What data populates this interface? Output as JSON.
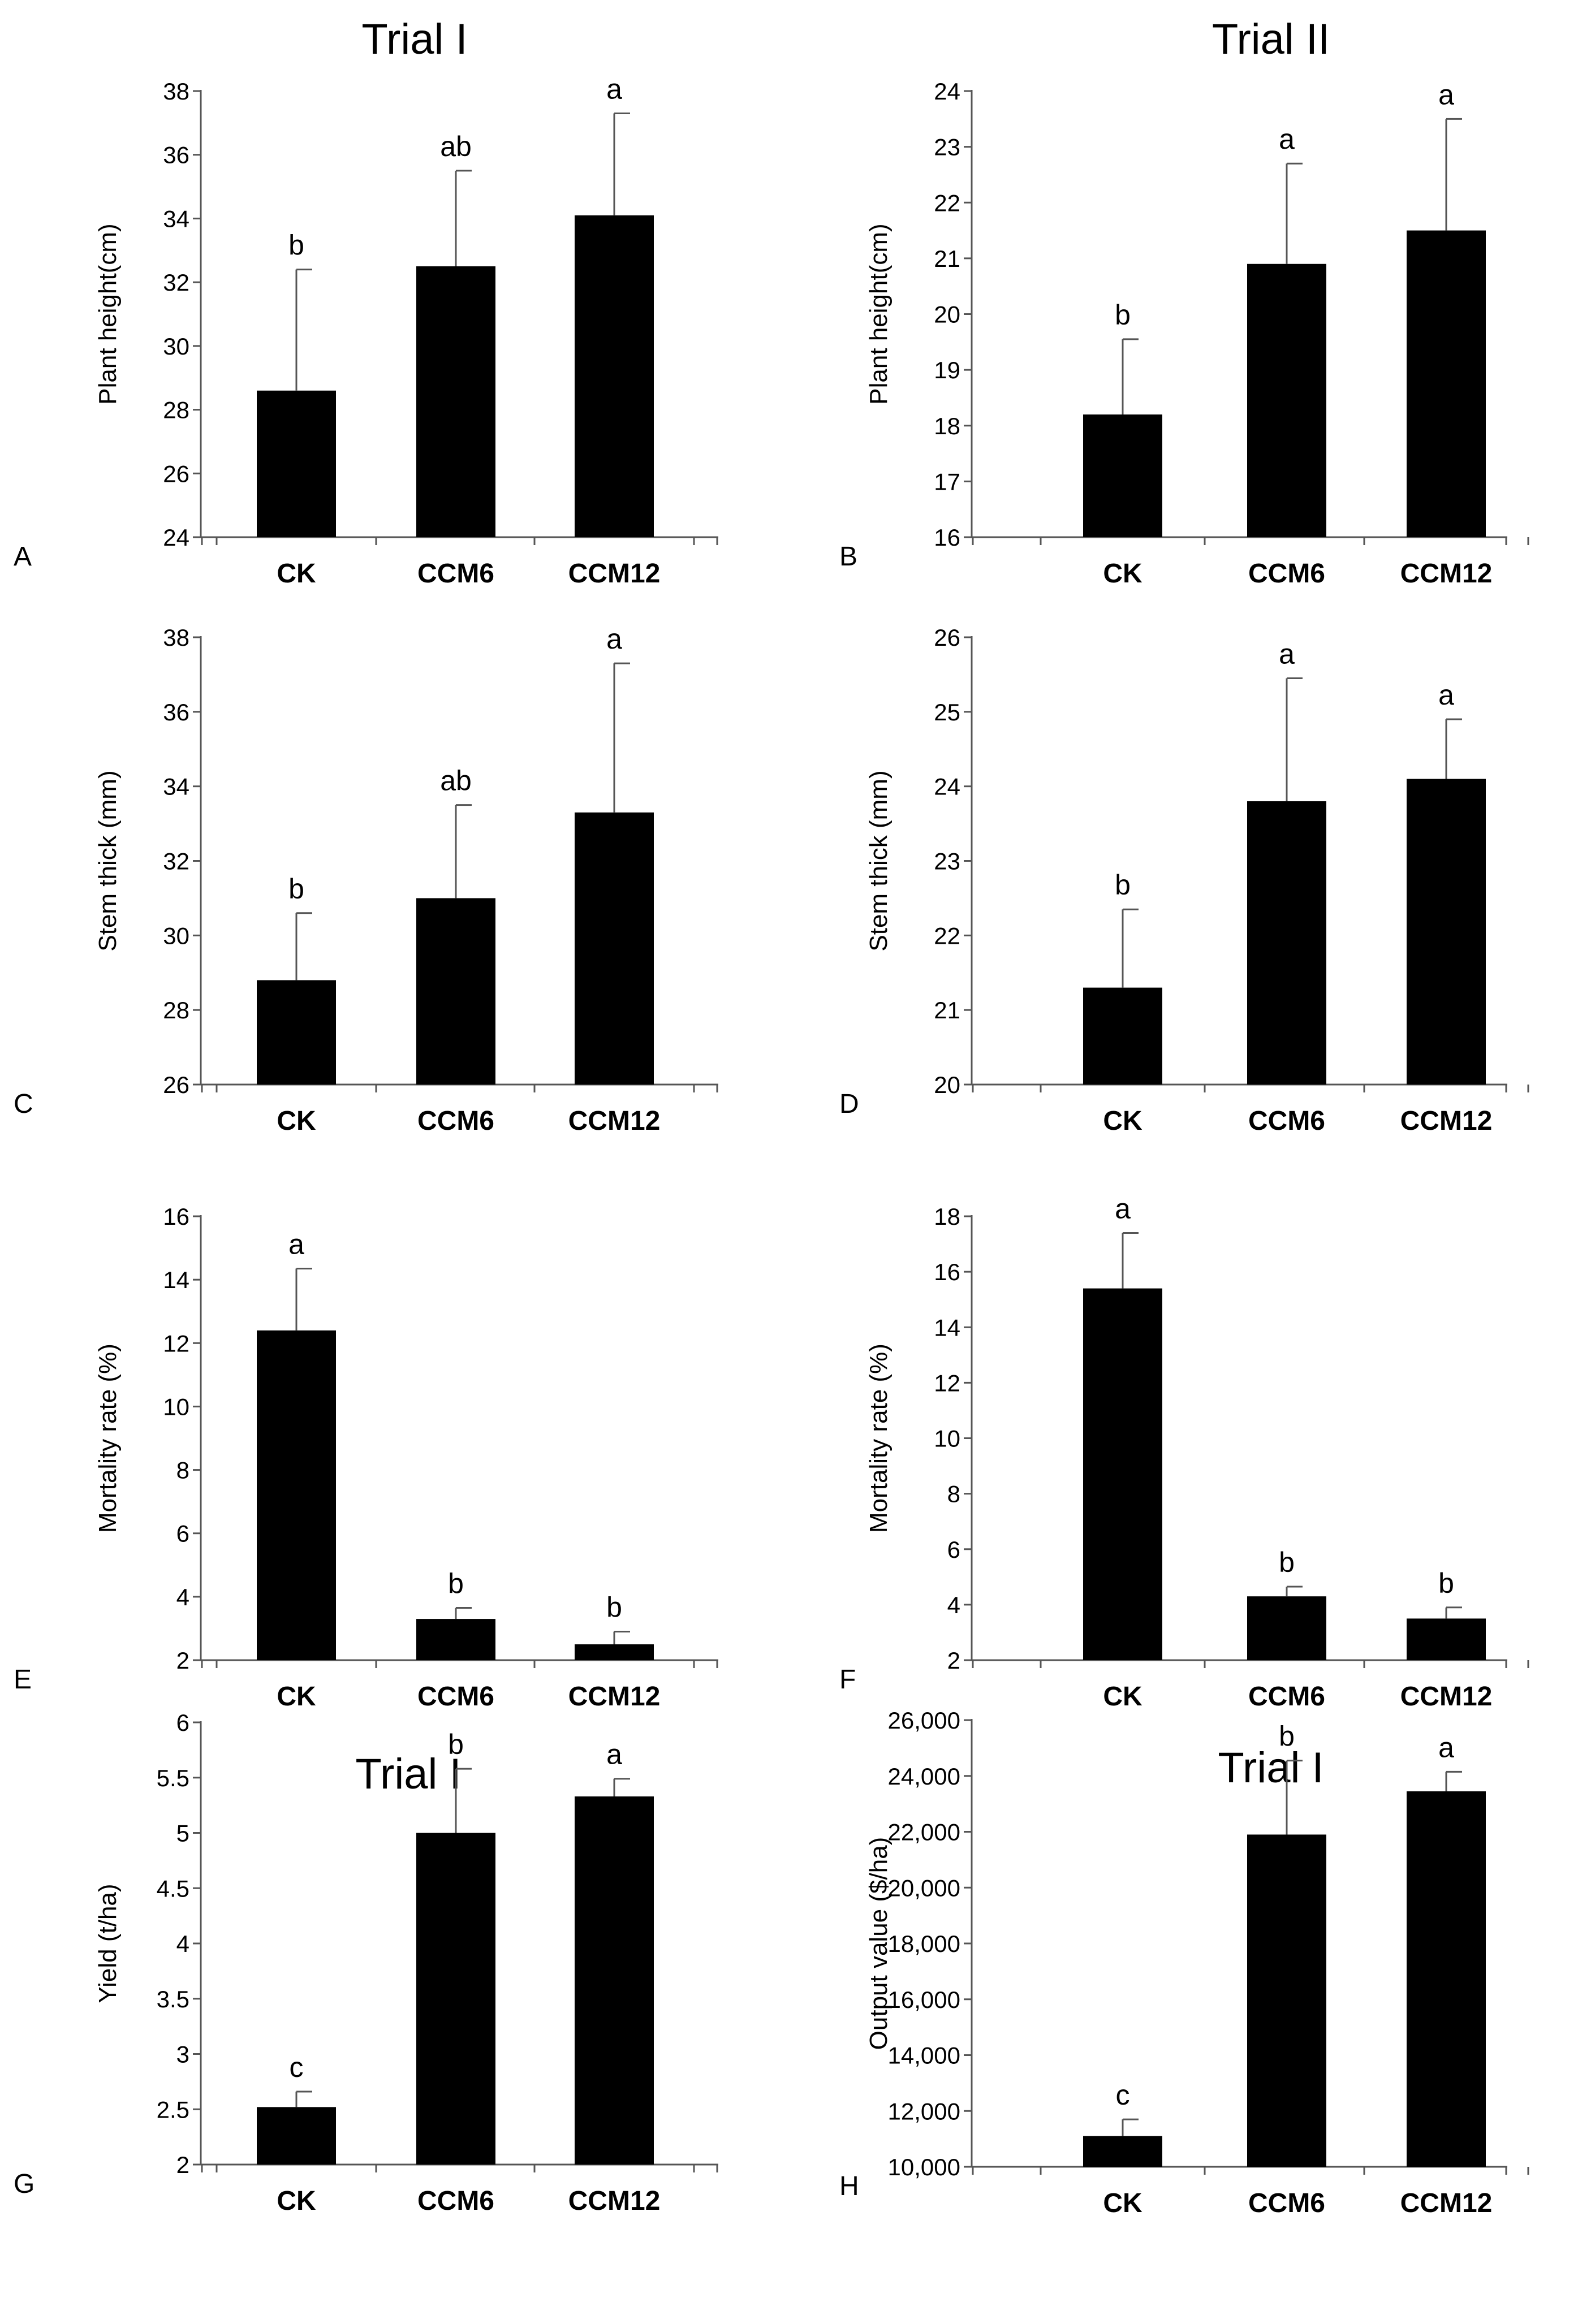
{
  "figure": {
    "colors": {
      "bar": "#000000",
      "axis": "#555555",
      "background": "#ffffff"
    }
  },
  "chart_data": [
    {
      "panel": "A",
      "title": "Trial I",
      "type": "bar",
      "ylabel": "Plant height(cm)",
      "ylim": [
        24,
        38
      ],
      "yticks": [
        24,
        26,
        28,
        30,
        32,
        34,
        36,
        38
      ],
      "ytick_labels": [
        "24",
        "26",
        "28",
        "30",
        "32",
        "34",
        "36",
        "38"
      ],
      "categories": [
        "CK",
        "CCM6",
        "CCM12"
      ],
      "values": [
        28.6,
        32.5,
        34.1
      ],
      "errors": [
        3.8,
        3.0,
        3.2
      ],
      "significance": [
        "b",
        "ab",
        "a"
      ]
    },
    {
      "panel": "B",
      "title": "Trial II",
      "type": "bar",
      "ylabel": "Plant height(cm)",
      "ylim": [
        16,
        24
      ],
      "yticks": [
        16,
        17,
        18,
        19,
        20,
        21,
        22,
        23,
        24
      ],
      "ytick_labels": [
        "16",
        "17",
        "18",
        "19",
        "20",
        "21",
        "22",
        "23",
        "24"
      ],
      "categories": [
        "CK",
        "CCM6",
        "CCM12"
      ],
      "values": [
        18.2,
        20.9,
        21.5
      ],
      "errors": [
        1.35,
        1.8,
        2.0
      ],
      "significance": [
        "b",
        "a",
        "a"
      ]
    },
    {
      "panel": "C",
      "title": "",
      "type": "bar",
      "ylabel": "Stem thick (mm)",
      "ylim": [
        26,
        38
      ],
      "yticks": [
        26,
        28,
        30,
        32,
        34,
        36,
        38
      ],
      "ytick_labels": [
        "26",
        "28",
        "30",
        "32",
        "34",
        "36",
        "38"
      ],
      "categories": [
        "CK",
        "CCM6",
        "CCM12"
      ],
      "values": [
        28.8,
        31.0,
        33.3
      ],
      "errors": [
        1.8,
        2.5,
        4.0
      ],
      "significance": [
        "b",
        "ab",
        "a"
      ]
    },
    {
      "panel": "D",
      "title": "",
      "type": "bar",
      "ylabel": "Stem thick (mm)",
      "ylim": [
        20,
        26
      ],
      "yticks": [
        20,
        21,
        22,
        23,
        24,
        25,
        26
      ],
      "ytick_labels": [
        "20",
        "21",
        "22",
        "23",
        "24",
        "25",
        "26"
      ],
      "categories": [
        "CK",
        "CCM6",
        "CCM12"
      ],
      "values": [
        21.3,
        23.8,
        24.1
      ],
      "errors": [
        1.05,
        1.65,
        0.8
      ],
      "significance": [
        "b",
        "a",
        "a"
      ]
    },
    {
      "panel": "E",
      "title": "",
      "type": "bar",
      "ylabel": "Mortality rate  (%)",
      "ylim": [
        2,
        16
      ],
      "yticks": [
        2,
        4,
        6,
        8,
        10,
        12,
        14,
        16
      ],
      "ytick_labels": [
        "2",
        "4",
        "6",
        "8",
        "10",
        "12",
        "14",
        "16"
      ],
      "categories": [
        "CK",
        "CCM6",
        "CCM12"
      ],
      "values": [
        12.4,
        3.3,
        2.5
      ],
      "errors": [
        1.95,
        0.35,
        0.4
      ],
      "significance": [
        "a",
        "b",
        "b"
      ]
    },
    {
      "panel": "F",
      "title": "",
      "type": "bar",
      "ylabel": "Mortality rate  (%)",
      "ylim": [
        2,
        18
      ],
      "yticks": [
        2,
        4,
        6,
        8,
        10,
        12,
        14,
        16,
        18
      ],
      "ytick_labels": [
        "2",
        "4",
        "6",
        "8",
        "10",
        "12",
        "14",
        "16",
        "18"
      ],
      "categories": [
        "CK",
        "CCM6",
        "CCM12"
      ],
      "values": [
        15.4,
        4.3,
        3.5
      ],
      "errors": [
        2.0,
        0.35,
        0.4
      ],
      "significance": [
        "a",
        "b",
        "b"
      ]
    },
    {
      "panel": "G",
      "title": "Trial I",
      "type": "bar",
      "ylabel": "Yield  (t/ha)",
      "ylim": [
        2,
        6
      ],
      "yticks": [
        2,
        2.5,
        3,
        3.5,
        4,
        4.5,
        5,
        5.5,
        6
      ],
      "ytick_labels": [
        "2",
        "2.5",
        "3",
        "3.5",
        "4",
        "4.5",
        "5",
        "5.5",
        "6"
      ],
      "categories": [
        "CK",
        "CCM6",
        "CCM12"
      ],
      "values": [
        2.52,
        5.0,
        5.33
      ],
      "errors": [
        0.14,
        0.58,
        0.16
      ],
      "significance": [
        "c",
        "b",
        "a"
      ]
    },
    {
      "panel": "H",
      "title": "Trial I",
      "type": "bar",
      "ylabel": "Output value ($/ha)",
      "ylim": [
        10000,
        26000
      ],
      "yticks": [
        10000,
        12000,
        14000,
        16000,
        18000,
        20000,
        22000,
        24000,
        26000
      ],
      "ytick_labels": [
        "10,000",
        "12,000",
        "14,000",
        "16,000",
        "18,000",
        "20,000",
        "22,000",
        "24,000",
        "26,000"
      ],
      "categories": [
        "CK",
        "CCM6",
        "CCM12"
      ],
      "values": [
        11100,
        21900,
        23450
      ],
      "errors": [
        600,
        2650,
        700
      ],
      "significance": [
        "c",
        "b",
        "a"
      ]
    }
  ]
}
